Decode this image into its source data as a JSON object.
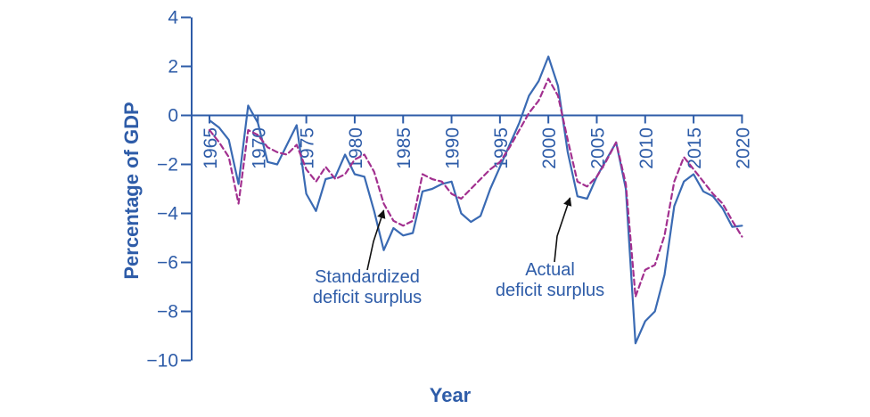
{
  "figure": {
    "xlabel": "Year",
    "ylabel": "Percentage of GDP",
    "annotations": [
      {
        "id": "standardized",
        "lines": [
          "Standardized",
          "deficit surplus"
        ]
      },
      {
        "id": "actual",
        "lines": [
          "Actual",
          "deficit surplus"
        ]
      }
    ]
  },
  "colors": {
    "background": "#ffffff",
    "axis": "#2e5ca8",
    "text": "#2e5ca8",
    "actual_line": "#3a6ab3",
    "standardized_line": "#a2308f",
    "arrow": "#111111"
  },
  "chart_data": {
    "type": "line",
    "title": "",
    "xlabel": "Year",
    "ylabel": "Percentage of GDP",
    "grid": false,
    "legend": "none; series identified by in-chart labels with arrows",
    "xlim": [
      1963.2,
      2020
    ],
    "ylim": [
      -10,
      4
    ],
    "x_ticks": [
      1965,
      1970,
      1975,
      1980,
      1985,
      1990,
      1995,
      2000,
      2005,
      2010,
      2015,
      2020
    ],
    "x_tick_labels": [
      "1965",
      "1970",
      "1975",
      "1980",
      "1985",
      "1990",
      "1995",
      "2000",
      "2005",
      "2010",
      "2015",
      "2020"
    ],
    "y_ticks": [
      4,
      2,
      0,
      -2,
      -4,
      -6,
      -8,
      -10
    ],
    "y_tick_labels": [
      "4",
      "2",
      "0",
      "−2",
      "−4",
      "−6",
      "−8",
      "−10"
    ],
    "x": [
      1965,
      1966,
      1967,
      1968,
      1969,
      1970,
      1971,
      1972,
      1973,
      1974,
      1975,
      1976,
      1977,
      1978,
      1979,
      1980,
      1981,
      1982,
      1983,
      1984,
      1985,
      1986,
      1987,
      1988,
      1989,
      1990,
      1991,
      1992,
      1993,
      1994,
      1995,
      1996,
      1997,
      1998,
      1999,
      2000,
      2001,
      2002,
      2003,
      2004,
      2005,
      2006,
      2007,
      2008,
      2009,
      2010,
      2011,
      2012,
      2013,
      2014,
      2015,
      2016,
      2017,
      2018,
      2019,
      2020
    ],
    "series": [
      {
        "id": "actual",
        "name": "Actual deficit surplus",
        "style": "solid",
        "color_key": "actual_line",
        "values": [
          -0.2,
          -0.5,
          -1.0,
          -2.8,
          0.4,
          -0.3,
          -1.9,
          -2.0,
          -1.2,
          -0.4,
          -3.2,
          -3.9,
          -2.6,
          -2.5,
          -1.6,
          -2.4,
          -2.5,
          -3.9,
          -5.5,
          -4.6,
          -4.9,
          -4.8,
          -3.1,
          -3.0,
          -2.8,
          -2.7,
          -4.0,
          -4.35,
          -4.1,
          -3.0,
          -2.1,
          -1.2,
          -0.3,
          0.8,
          1.4,
          2.4,
          1.2,
          -1.5,
          -3.3,
          -3.4,
          -2.5,
          -1.8,
          -1.1,
          -3.0,
          -9.3,
          -8.4,
          -8.0,
          -6.5,
          -3.7,
          -2.7,
          -2.4,
          -3.1,
          -3.3,
          -3.8,
          -4.55,
          -4.5
        ]
      },
      {
        "id": "standardized",
        "name": "Standardized deficit surplus",
        "style": "dashed",
        "color_key": "standardized_line",
        "values": [
          -0.6,
          -1.1,
          -1.7,
          -3.6,
          -0.6,
          -0.8,
          -1.3,
          -1.5,
          -1.6,
          -1.2,
          -2.2,
          -2.7,
          -2.1,
          -2.6,
          -2.4,
          -1.8,
          -1.6,
          -2.3,
          -3.6,
          -4.3,
          -4.5,
          -4.3,
          -2.4,
          -2.6,
          -2.7,
          -3.2,
          -3.4,
          -3.0,
          -2.6,
          -2.2,
          -1.9,
          -1.3,
          -0.6,
          0.1,
          0.6,
          1.5,
          0.8,
          -1.0,
          -2.7,
          -2.9,
          -2.5,
          -1.85,
          -1.1,
          -2.8,
          -7.4,
          -6.3,
          -6.1,
          -4.9,
          -2.7,
          -1.7,
          -2.2,
          -2.7,
          -3.2,
          -3.6,
          -4.3,
          -4.95
        ]
      }
    ]
  }
}
